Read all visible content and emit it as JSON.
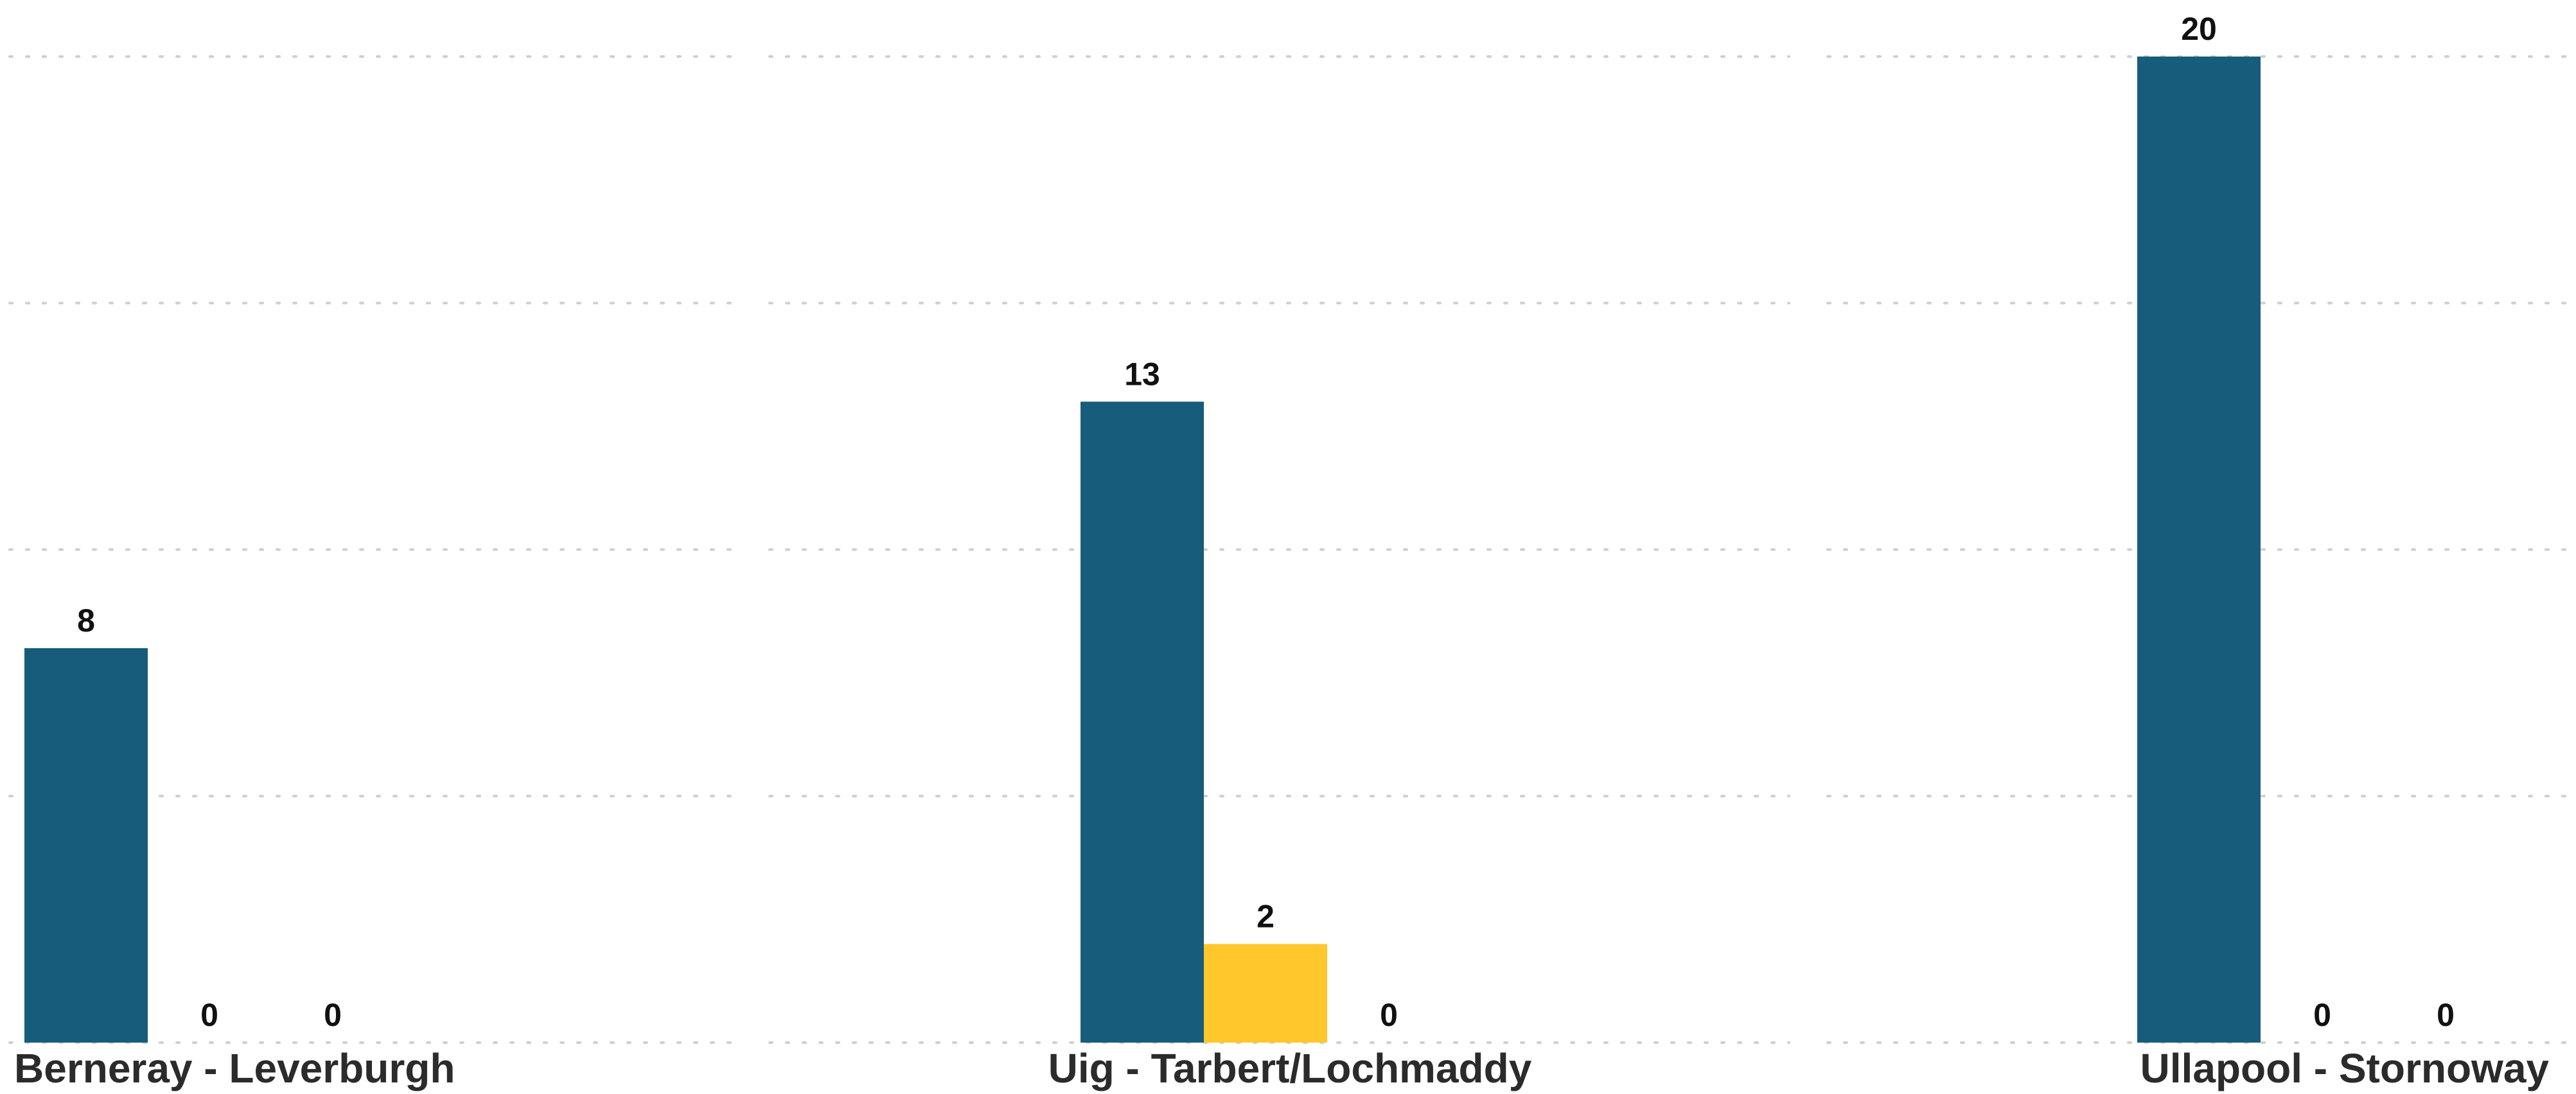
{
  "chart_data": {
    "type": "bar",
    "title": "",
    "xlabel": "",
    "ylabel": "",
    "ylim": [
      0,
      20
    ],
    "grid": true,
    "legend": "none",
    "categories": [
      "Berneray - Leverburgh",
      "Uig - Tarbert/Lochmaddy",
      "Ullapool - Stornoway"
    ],
    "series": [
      {
        "values": [
          8,
          13,
          20
        ],
        "color": "#175c7b"
      },
      {
        "values": [
          0,
          2,
          0
        ],
        "color": "#ffc72c"
      },
      {
        "values": [
          0,
          0,
          0
        ],
        "color": "#9e9e9e"
      }
    ]
  }
}
